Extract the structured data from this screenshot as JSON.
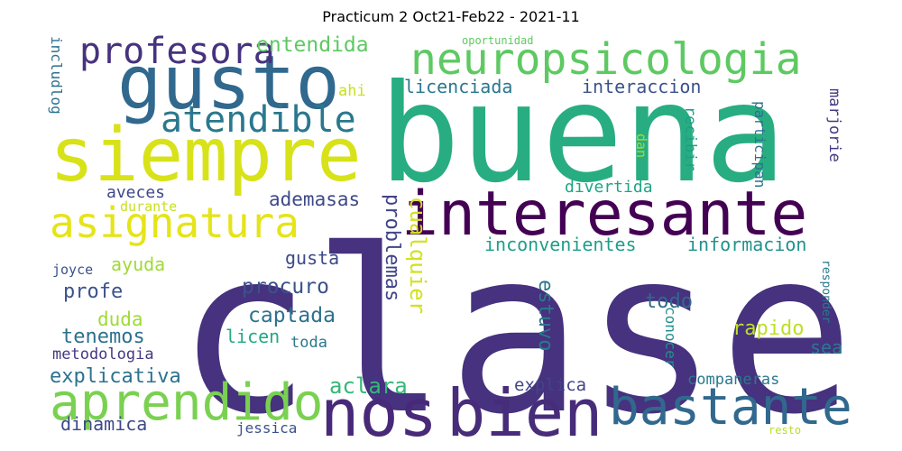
{
  "chart_data": {
    "type": "wordcloud",
    "title": "Practicum 2 Oct21-Feb22 - 2021-11",
    "words": [
      {
        "text": "clase",
        "weight": 1.0,
        "color": "#46327e",
        "orientation": "horizontal"
      },
      {
        "text": "buena",
        "weight": 0.88,
        "color": "#27ad81",
        "orientation": "horizontal"
      },
      {
        "text": "siempre",
        "weight": 0.42,
        "color": "#d8e219",
        "orientation": "horizontal"
      },
      {
        "text": "gusto",
        "weight": 0.42,
        "color": "#31688e",
        "orientation": "horizontal"
      },
      {
        "text": "interesante",
        "weight": 0.4,
        "color": "#440154",
        "orientation": "horizontal"
      },
      {
        "text": "bien",
        "weight": 0.4,
        "color": "#472c7a",
        "orientation": "horizontal"
      },
      {
        "text": "nos",
        "weight": 0.4,
        "color": "#482979",
        "orientation": "horizontal"
      },
      {
        "text": "neuropsicologia",
        "weight": 0.3,
        "color": "#5ec962",
        "orientation": "horizontal"
      },
      {
        "text": "aprendido",
        "weight": 0.3,
        "color": "#7ad151",
        "orientation": "horizontal"
      },
      {
        "text": "bastante",
        "weight": 0.3,
        "color": "#31688e",
        "orientation": "horizontal"
      },
      {
        "text": "asignatura",
        "weight": 0.26,
        "color": "#e5e419",
        "orientation": "horizontal"
      },
      {
        "text": "atendible",
        "weight": 0.24,
        "color": "#2a788e",
        "orientation": "horizontal"
      },
      {
        "text": "profesora",
        "weight": 0.22,
        "color": "#46327e",
        "orientation": "horizontal"
      },
      {
        "text": "inconvenientes",
        "weight": 0.14,
        "color": "#1f9e89",
        "orientation": "horizontal"
      },
      {
        "text": "informacion",
        "weight": 0.14,
        "color": "#21918c",
        "orientation": "horizontal"
      },
      {
        "text": "explicativa",
        "weight": 0.13,
        "color": "#2c728e",
        "orientation": "horizontal"
      },
      {
        "text": "entendida",
        "weight": 0.12,
        "color": "#5ec962",
        "orientation": "horizontal"
      },
      {
        "text": "licenciada",
        "weight": 0.12,
        "color": "#2a788e",
        "orientation": "horizontal"
      },
      {
        "text": "interaccion",
        "weight": 0.12,
        "color": "#3b528b",
        "orientation": "horizontal"
      },
      {
        "text": "problemas",
        "weight": 0.12,
        "color": "#414487",
        "orientation": "vertical"
      },
      {
        "text": "cualquier",
        "weight": 0.13,
        "color": "#d2e21b",
        "orientation": "vertical"
      },
      {
        "text": "procuro",
        "weight": 0.12,
        "color": "#3b528b",
        "orientation": "horizontal"
      },
      {
        "text": "captada",
        "weight": 0.12,
        "color": "#2c728e",
        "orientation": "horizontal"
      },
      {
        "text": "profe",
        "weight": 0.12,
        "color": "#3b528b",
        "orientation": "horizontal"
      },
      {
        "text": "aclara",
        "weight": 0.12,
        "color": "#35b779",
        "orientation": "horizontal"
      },
      {
        "text": "ademasas",
        "weight": 0.11,
        "color": "#3e4989",
        "orientation": "horizontal"
      },
      {
        "text": "estuvo",
        "weight": 0.12,
        "color": "#2a788e",
        "orientation": "vertical"
      },
      {
        "text": "tenemos",
        "weight": 0.11,
        "color": "#2c728e",
        "orientation": "horizontal"
      },
      {
        "text": "duda",
        "weight": 0.1,
        "color": "#a0da39",
        "orientation": "horizontal"
      },
      {
        "text": "gusta",
        "weight": 0.1,
        "color": "#3e4989",
        "orientation": "horizontal"
      },
      {
        "text": "ayuda",
        "weight": 0.1,
        "color": "#a0da39",
        "orientation": "horizontal"
      },
      {
        "text": "rapido",
        "weight": 0.1,
        "color": "#bddf26",
        "orientation": "horizontal"
      },
      {
        "text": "todo",
        "weight": 0.1,
        "color": "#31688e",
        "orientation": "horizontal"
      },
      {
        "text": "sea",
        "weight": 0.1,
        "color": "#2a788e",
        "orientation": "horizontal"
      },
      {
        "text": "explica",
        "weight": 0.1,
        "color": "#414487",
        "orientation": "horizontal"
      },
      {
        "text": "dinamica",
        "weight": 0.1,
        "color": "#3e4989",
        "orientation": "horizontal"
      },
      {
        "text": "aveces",
        "weight": 0.09,
        "color": "#3e4989",
        "orientation": "horizontal"
      },
      {
        "text": "divertida",
        "weight": 0.09,
        "color": "#20a486",
        "orientation": "horizontal"
      },
      {
        "text": "metodologia",
        "weight": 0.08,
        "color": "#443983",
        "orientation": "horizontal"
      },
      {
        "text": "licen",
        "weight": 0.08,
        "color": "#22a884",
        "orientation": "horizontal"
      },
      {
        "text": "toda",
        "weight": 0.08,
        "color": "#2a788e",
        "orientation": "horizontal"
      },
      {
        "text": "companeras",
        "weight": 0.08,
        "color": "#2a788e",
        "orientation": "horizontal"
      },
      {
        "text": "conocer",
        "weight": 0.08,
        "color": "#21918c",
        "orientation": "vertical"
      },
      {
        "text": "recibir",
        "weight": 0.08,
        "color": "#1f9e89",
        "orientation": "vertical"
      },
      {
        "text": "participan",
        "weight": 0.08,
        "color": "#2c728e",
        "orientation": "vertical"
      },
      {
        "text": "marjorie",
        "weight": 0.08,
        "color": "#443983",
        "orientation": "vertical"
      },
      {
        "text": "includlog",
        "weight": 0.08,
        "color": "#2c728e",
        "orientation": "vertical"
      },
      {
        "text": "ahi",
        "weight": 0.08,
        "color": "#c8e020",
        "orientation": "horizontal"
      },
      {
        "text": "durante",
        "weight": 0.08,
        "color": "#c8e020",
        "orientation": "horizontal"
      },
      {
        "text": "joyce",
        "weight": 0.07,
        "color": "#3b528b",
        "orientation": "horizontal"
      },
      {
        "text": "dan",
        "weight": 0.07,
        "color": "#a0da39",
        "orientation": "vertical"
      },
      {
        "text": "jessica",
        "weight": 0.07,
        "color": "#3b528b",
        "orientation": "horizontal"
      },
      {
        "text": "responder",
        "weight": 0.06,
        "color": "#2a788e",
        "orientation": "vertical"
      },
      {
        "text": "oportunidad",
        "weight": 0.05,
        "color": "#5ec962",
        "orientation": "horizontal"
      },
      {
        "text": "resto",
        "weight": 0.05,
        "color": "#b5de2b",
        "orientation": "horizontal"
      }
    ]
  }
}
